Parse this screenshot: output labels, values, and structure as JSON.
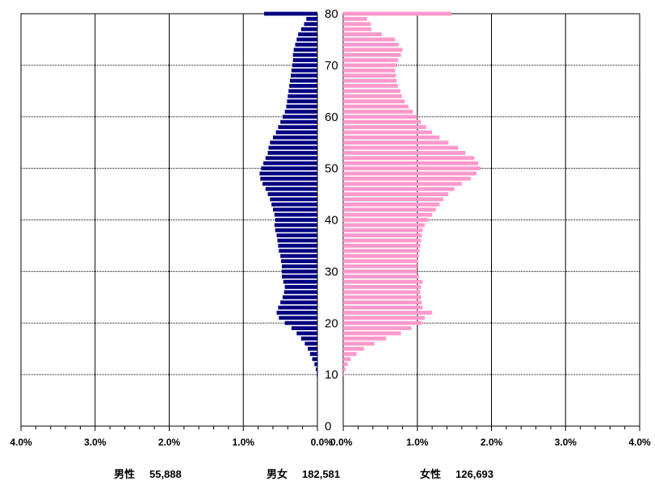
{
  "chart_data": {
    "type": "bar",
    "orientation": "horizontal",
    "y_axis": {
      "label": "",
      "range": [
        0,
        80
      ],
      "tick_labels": [
        "0",
        "10",
        "20",
        "30",
        "40",
        "50",
        "60",
        "70",
        "80"
      ]
    },
    "x_axis_left": {
      "range": [
        0,
        4
      ],
      "unit": "%",
      "tick_labels": [
        "4.0%",
        "3.0%",
        "2.0%",
        "1.0%",
        "0.0%"
      ]
    },
    "x_axis_right": {
      "range": [
        0,
        4
      ],
      "unit": "%",
      "tick_labels": [
        "0.0%",
        "1.0%",
        "2.0%",
        "3.0%",
        "4.0%"
      ]
    },
    "grid": {
      "horizontal_every": 10,
      "vertical_every_percent": 1
    },
    "series": [
      {
        "side": "left",
        "color": "#000080",
        "ages": [
          10,
          11,
          12,
          13,
          14,
          15,
          16,
          17,
          18,
          19,
          20,
          21,
          22,
          23,
          24,
          25,
          26,
          27,
          28,
          29,
          30,
          31,
          32,
          33,
          34,
          35,
          36,
          37,
          38,
          39,
          40,
          41,
          42,
          43,
          44,
          45,
          46,
          47,
          48,
          49,
          50,
          51,
          52,
          53,
          54,
          55,
          56,
          57,
          58,
          59,
          60,
          61,
          62,
          63,
          64,
          65,
          66,
          67,
          68,
          69,
          70,
          71,
          72,
          73,
          74,
          75,
          76,
          77,
          78,
          79,
          80
        ],
        "values": [
          0.01,
          0.02,
          0.04,
          0.07,
          0.1,
          0.13,
          0.17,
          0.22,
          0.28,
          0.35,
          0.44,
          0.52,
          0.55,
          0.53,
          0.5,
          0.47,
          0.45,
          0.44,
          0.46,
          0.48,
          0.48,
          0.48,
          0.49,
          0.5,
          0.52,
          0.53,
          0.54,
          0.55,
          0.57,
          0.58,
          0.57,
          0.58,
          0.6,
          0.62,
          0.64,
          0.67,
          0.7,
          0.74,
          0.77,
          0.78,
          0.76,
          0.73,
          0.7,
          0.67,
          0.66,
          0.64,
          0.6,
          0.56,
          0.53,
          0.5,
          0.47,
          0.44,
          0.42,
          0.41,
          0.4,
          0.39,
          0.38,
          0.37,
          0.36,
          0.35,
          0.34,
          0.33,
          0.33,
          0.32,
          0.3,
          0.28,
          0.26,
          0.22,
          0.18,
          0.15,
          0.72
        ]
      },
      {
        "side": "right",
        "color": "#ff99cc",
        "ages": [
          10,
          11,
          12,
          13,
          14,
          15,
          16,
          17,
          18,
          19,
          20,
          21,
          22,
          23,
          24,
          25,
          26,
          27,
          28,
          29,
          30,
          31,
          32,
          33,
          34,
          35,
          36,
          37,
          38,
          39,
          40,
          41,
          42,
          43,
          44,
          45,
          46,
          47,
          48,
          49,
          50,
          51,
          52,
          53,
          54,
          55,
          56,
          57,
          58,
          59,
          60,
          61,
          62,
          63,
          64,
          65,
          66,
          67,
          68,
          69,
          70,
          71,
          72,
          73,
          74,
          75,
          76,
          77,
          78,
          79,
          80
        ],
        "values": [
          0.01,
          0.03,
          0.06,
          0.1,
          0.18,
          0.28,
          0.42,
          0.58,
          0.78,
          0.92,
          1.06,
          1.1,
          1.2,
          1.07,
          1.06,
          1.05,
          1.04,
          1.05,
          1.07,
          1.02,
          1.0,
          1.0,
          1.01,
          1.02,
          1.03,
          1.04,
          1.05,
          1.06,
          1.07,
          1.1,
          1.15,
          1.2,
          1.25,
          1.3,
          1.35,
          1.42,
          1.5,
          1.6,
          1.72,
          1.8,
          1.85,
          1.82,
          1.77,
          1.65,
          1.55,
          1.42,
          1.3,
          1.2,
          1.12,
          1.05,
          1.0,
          0.94,
          0.88,
          0.83,
          0.79,
          0.77,
          0.74,
          0.72,
          0.71,
          0.7,
          0.72,
          0.74,
          0.78,
          0.8,
          0.75,
          0.7,
          0.52,
          0.38,
          0.37,
          0.32,
          1.46
        ]
      }
    ]
  },
  "footer": {
    "male_label": "男性",
    "male_value": "55,888",
    "total_label": "男女",
    "total_value": "182,581",
    "female_label": "女性",
    "female_value": "126,693"
  }
}
